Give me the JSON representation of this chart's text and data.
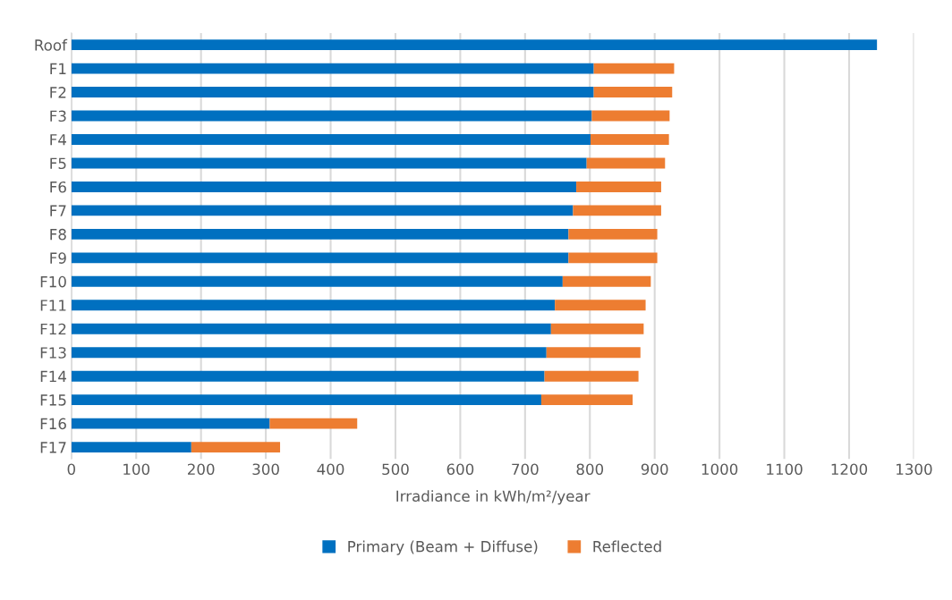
{
  "chart_data": {
    "type": "bar",
    "orientation": "horizontal",
    "stacked": true,
    "categories": [
      "Roof",
      "F1",
      "F2",
      "F3",
      "F4",
      "F5",
      "F6",
      "F7",
      "F8",
      "F9",
      "F10",
      "F11",
      "F12",
      "F13",
      "F14",
      "F15",
      "F16",
      "F17"
    ],
    "series": [
      {
        "name": "Primary (Beam + Diffuse)",
        "color": "#0070c0",
        "values": [
          1243,
          806,
          806,
          803,
          801,
          795,
          779,
          774,
          767,
          767,
          758,
          746,
          740,
          733,
          730,
          725,
          306,
          185
        ]
      },
      {
        "name": "Reflected",
        "color": "#ed7d31",
        "values": [
          null,
          124,
          121,
          120,
          121,
          121,
          131,
          136,
          137,
          137,
          136,
          140,
          143,
          145,
          145,
          141,
          135,
          137
        ]
      }
    ],
    "xlabel": "Irradiance in kWh/m²/year",
    "xlim": [
      0,
      1300
    ],
    "xticks": [
      0,
      100,
      200,
      300,
      400,
      500,
      600,
      700,
      800,
      900,
      1000,
      1100,
      1200,
      1300
    ],
    "grid": "x",
    "legend": "bottom"
  }
}
